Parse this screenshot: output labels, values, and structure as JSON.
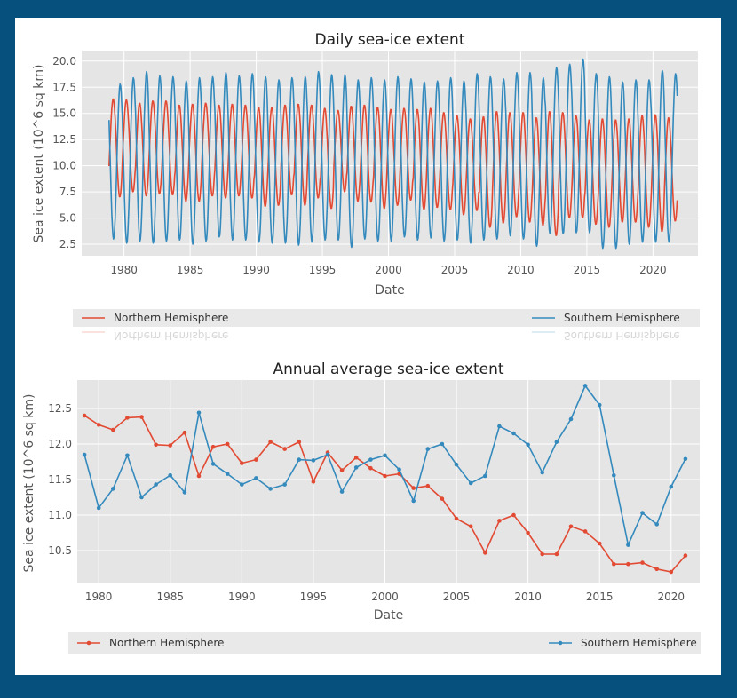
{
  "chart_data": [
    {
      "type": "line",
      "title": "Daily sea-ice extent",
      "xlabel": "Date",
      "ylabel": "Sea ice extent (10^6 sq km)",
      "xlim": [
        1976.8,
        2023.4
      ],
      "ylim": [
        1.4,
        21.0
      ],
      "xticks": [
        1980,
        1985,
        1990,
        1995,
        2000,
        2005,
        2010,
        2015,
        2020
      ],
      "yticks": [
        "2.5",
        "5.0",
        "7.5",
        "10.0",
        "12.5",
        "15.0",
        "17.5",
        "20.0"
      ],
      "grid": true,
      "legend_position": "below",
      "series": [
        {
          "name": "Northern Hemisphere",
          "color": "#e24a33",
          "annual_cycle": [
            {
              "year": 1979,
              "max": 16.4,
              "min": 7.0
            },
            {
              "year": 1980,
              "max": 16.3,
              "min": 7.5
            },
            {
              "year": 1981,
              "max": 16.0,
              "min": 7.1
            },
            {
              "year": 1982,
              "max": 16.2,
              "min": 7.3
            },
            {
              "year": 1983,
              "max": 16.2,
              "min": 7.2
            },
            {
              "year": 1984,
              "max": 15.8,
              "min": 6.6
            },
            {
              "year": 1985,
              "max": 15.9,
              "min": 6.6
            },
            {
              "year": 1986,
              "max": 16.0,
              "min": 7.1
            },
            {
              "year": 1987,
              "max": 15.8,
              "min": 6.9
            },
            {
              "year": 1988,
              "max": 15.9,
              "min": 7.1
            },
            {
              "year": 1989,
              "max": 15.8,
              "min": 6.9
            },
            {
              "year": 1990,
              "max": 15.6,
              "min": 6.1
            },
            {
              "year": 1991,
              "max": 15.6,
              "min": 6.2
            },
            {
              "year": 1992,
              "max": 15.8,
              "min": 7.2
            },
            {
              "year": 1993,
              "max": 15.9,
              "min": 6.2
            },
            {
              "year": 1994,
              "max": 15.8,
              "min": 6.9
            },
            {
              "year": 1995,
              "max": 15.5,
              "min": 5.9
            },
            {
              "year": 1996,
              "max": 15.3,
              "min": 7.5
            },
            {
              "year": 1997,
              "max": 15.7,
              "min": 6.6
            },
            {
              "year": 1998,
              "max": 15.8,
              "min": 6.5
            },
            {
              "year": 1999,
              "max": 15.6,
              "min": 5.9
            },
            {
              "year": 2000,
              "max": 15.4,
              "min": 6.2
            },
            {
              "year": 2001,
              "max": 15.5,
              "min": 6.7
            },
            {
              "year": 2002,
              "max": 15.4,
              "min": 5.8
            },
            {
              "year": 2003,
              "max": 15.5,
              "min": 6.0
            },
            {
              "year": 2004,
              "max": 15.1,
              "min": 5.8
            },
            {
              "year": 2005,
              "max": 14.8,
              "min": 5.3
            },
            {
              "year": 2006,
              "max": 14.5,
              "min": 5.7
            },
            {
              "year": 2007,
              "max": 14.7,
              "min": 4.1
            },
            {
              "year": 2008,
              "max": 15.2,
              "min": 4.5
            },
            {
              "year": 2009,
              "max": 15.1,
              "min": 5.1
            },
            {
              "year": 2010,
              "max": 15.1,
              "min": 4.6
            },
            {
              "year": 2011,
              "max": 14.6,
              "min": 4.3
            },
            {
              "year": 2012,
              "max": 15.2,
              "min": 3.3
            },
            {
              "year": 2013,
              "max": 15.1,
              "min": 5.0
            },
            {
              "year": 2014,
              "max": 14.8,
              "min": 5.0
            },
            {
              "year": 2015,
              "max": 14.4,
              "min": 4.4
            },
            {
              "year": 2016,
              "max": 14.5,
              "min": 4.1
            },
            {
              "year": 2017,
              "max": 14.4,
              "min": 4.6
            },
            {
              "year": 2018,
              "max": 14.5,
              "min": 4.6
            },
            {
              "year": 2019,
              "max": 14.8,
              "min": 4.1
            },
            {
              "year": 2020,
              "max": 14.9,
              "min": 3.7
            },
            {
              "year": 2021,
              "max": 14.6,
              "min": 4.7
            }
          ]
        },
        {
          "name": "Southern Hemisphere",
          "color": "#348abd",
          "annual_cycle": [
            {
              "year": 1979,
              "max": 17.8,
              "min": 3.0
            },
            {
              "year": 1980,
              "max": 18.4,
              "min": 2.6
            },
            {
              "year": 1981,
              "max": 19.0,
              "min": 2.8
            },
            {
              "year": 1982,
              "max": 18.6,
              "min": 2.6
            },
            {
              "year": 1983,
              "max": 18.5,
              "min": 2.8
            },
            {
              "year": 1984,
              "max": 18.1,
              "min": 2.9
            },
            {
              "year": 1985,
              "max": 18.4,
              "min": 2.5
            },
            {
              "year": 1986,
              "max": 18.5,
              "min": 2.8
            },
            {
              "year": 1987,
              "max": 18.9,
              "min": 3.2
            },
            {
              "year": 1988,
              "max": 18.6,
              "min": 2.9
            },
            {
              "year": 1989,
              "max": 18.8,
              "min": 2.9
            },
            {
              "year": 1990,
              "max": 18.5,
              "min": 2.7
            },
            {
              "year": 1991,
              "max": 18.2,
              "min": 2.6
            },
            {
              "year": 1992,
              "max": 18.4,
              "min": 2.6
            },
            {
              "year": 1993,
              "max": 18.5,
              "min": 2.4
            },
            {
              "year": 1994,
              "max": 19.0,
              "min": 2.7
            },
            {
              "year": 1995,
              "max": 18.7,
              "min": 2.9
            },
            {
              "year": 1996,
              "max": 18.7,
              "min": 2.9
            },
            {
              "year": 1997,
              "max": 18.2,
              "min": 2.2
            },
            {
              "year": 1998,
              "max": 18.4,
              "min": 3.0
            },
            {
              "year": 1999,
              "max": 18.2,
              "min": 2.8
            },
            {
              "year": 2000,
              "max": 18.5,
              "min": 2.8
            },
            {
              "year": 2001,
              "max": 18.3,
              "min": 3.2
            },
            {
              "year": 2002,
              "max": 18.0,
              "min": 2.9
            },
            {
              "year": 2003,
              "max": 18.1,
              "min": 3.1
            },
            {
              "year": 2004,
              "max": 18.4,
              "min": 2.8
            },
            {
              "year": 2005,
              "max": 18.1,
              "min": 2.9
            },
            {
              "year": 2006,
              "max": 18.8,
              "min": 2.6
            },
            {
              "year": 2007,
              "max": 18.5,
              "min": 2.9
            },
            {
              "year": 2008,
              "max": 18.3,
              "min": 3.0
            },
            {
              "year": 2009,
              "max": 18.9,
              "min": 3.3
            },
            {
              "year": 2010,
              "max": 18.9,
              "min": 3.0
            },
            {
              "year": 2011,
              "max": 18.4,
              "min": 2.3
            },
            {
              "year": 2012,
              "max": 19.4,
              "min": 3.5
            },
            {
              "year": 2013,
              "max": 19.7,
              "min": 3.5
            },
            {
              "year": 2014,
              "max": 20.2,
              "min": 3.6
            },
            {
              "year": 2015,
              "max": 18.8,
              "min": 3.6
            },
            {
              "year": 2016,
              "max": 18.5,
              "min": 2.1
            },
            {
              "year": 2017,
              "max": 18.0,
              "min": 2.1
            },
            {
              "year": 2018,
              "max": 18.2,
              "min": 2.5
            },
            {
              "year": 2019,
              "max": 18.2,
              "min": 2.7
            },
            {
              "year": 2020,
              "max": 19.1,
              "min": 2.7
            },
            {
              "year": 2021,
              "max": 18.8,
              "min": 2.7
            }
          ]
        }
      ]
    },
    {
      "type": "line",
      "title": "Annual average sea-ice extent",
      "xlabel": "Date",
      "ylabel": "Sea ice extent (10^6 sq km)",
      "xlim": [
        1978.5,
        2022.0
      ],
      "ylim": [
        10.05,
        12.9
      ],
      "xticks": [
        1980,
        1985,
        1990,
        1995,
        2000,
        2005,
        2010,
        2015,
        2020
      ],
      "yticks": [
        "10.5",
        "11.0",
        "11.5",
        "12.0",
        "12.5"
      ],
      "grid": true,
      "legend_position": "below",
      "x": [
        1979,
        1980,
        1981,
        1982,
        1983,
        1984,
        1985,
        1986,
        1987,
        1988,
        1989,
        1990,
        1991,
        1992,
        1993,
        1994,
        1995,
        1996,
        1997,
        1998,
        1999,
        2000,
        2001,
        2002,
        2003,
        2004,
        2005,
        2006,
        2007,
        2008,
        2009,
        2010,
        2011,
        2012,
        2013,
        2014,
        2015,
        2016,
        2017,
        2018,
        2019,
        2020,
        2021
      ],
      "series": [
        {
          "name": "Northern Hemisphere",
          "color": "#e24a33",
          "values": [
            12.4,
            12.27,
            12.2,
            12.37,
            12.38,
            11.99,
            11.98,
            12.16,
            11.55,
            11.96,
            12.0,
            11.73,
            11.78,
            12.03,
            11.93,
            12.03,
            11.47,
            11.88,
            11.63,
            11.81,
            11.66,
            11.55,
            11.58,
            11.38,
            11.41,
            11.23,
            10.95,
            10.84,
            10.47,
            10.92,
            11.0,
            10.75,
            10.45,
            10.45,
            10.84,
            10.77,
            10.6,
            10.31,
            10.31,
            10.33,
            10.24,
            10.2,
            10.43
          ]
        },
        {
          "name": "Southern Hemisphere",
          "color": "#348abd",
          "values": [
            11.85,
            11.1,
            11.37,
            11.84,
            11.25,
            11.43,
            11.56,
            11.32,
            12.44,
            11.72,
            11.58,
            11.43,
            11.52,
            11.37,
            11.43,
            11.78,
            11.77,
            11.85,
            11.33,
            11.67,
            11.78,
            11.84,
            11.64,
            11.2,
            11.93,
            12.0,
            11.71,
            11.45,
            11.55,
            12.25,
            12.15,
            11.99,
            11.6,
            12.03,
            12.35,
            12.82,
            12.55,
            11.56,
            10.58,
            11.03,
            10.87,
            11.4,
            11.79
          ]
        }
      ]
    }
  ]
}
